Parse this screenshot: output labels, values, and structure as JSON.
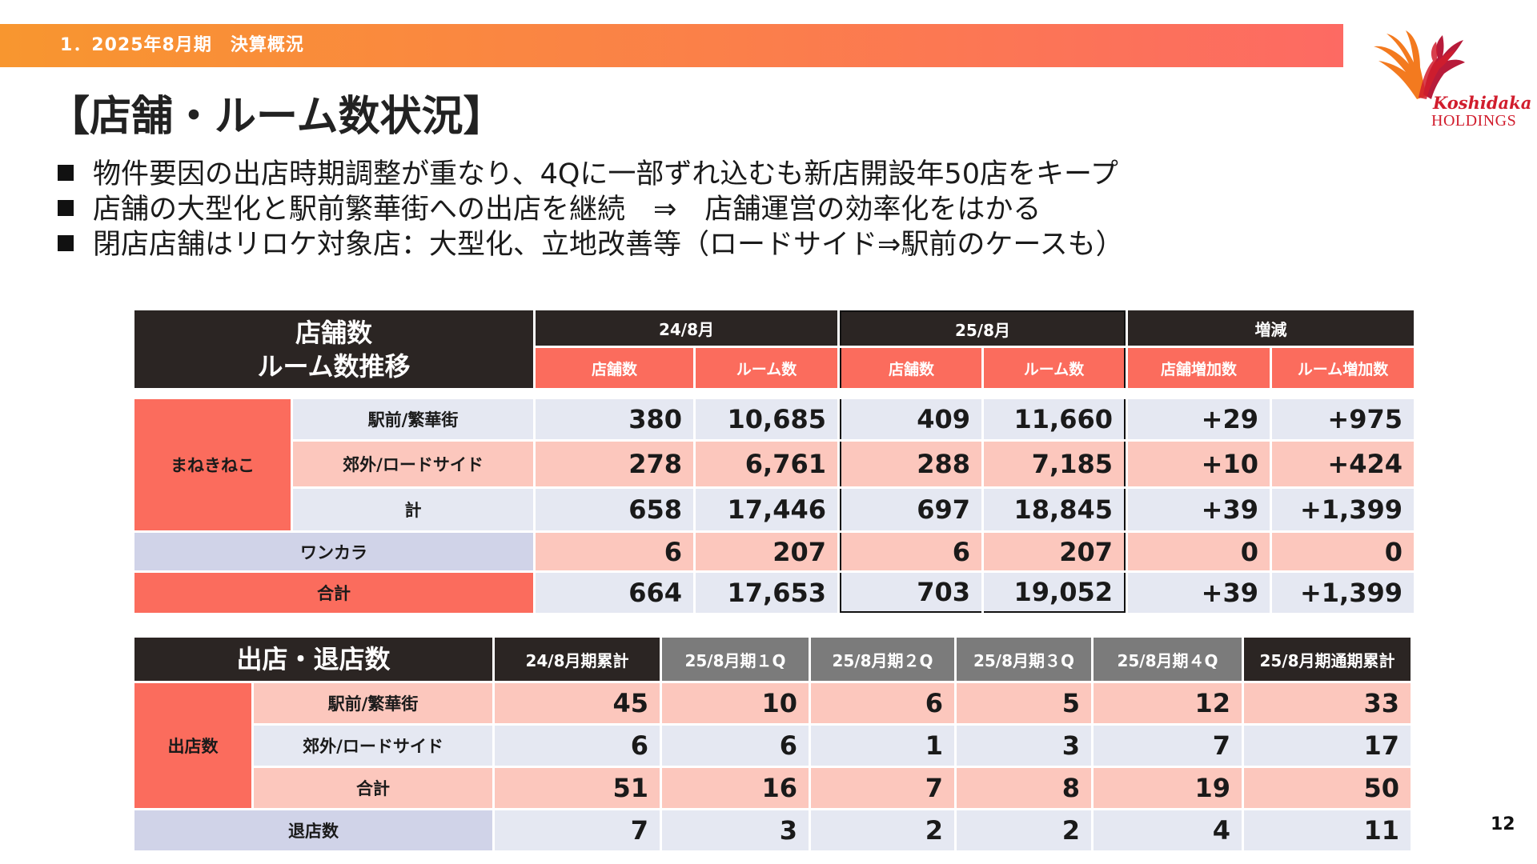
{
  "header": {
    "section_title": "1．2025年8月期　決算概況"
  },
  "logo": {
    "brand": "Koshidaka",
    "sub": "HOLDINGS"
  },
  "page_title": "【店舗・ルーム数状況】",
  "bullets": [
    "物件要因の出店時期調整が重なり、4Qに一部ずれ込むも新店開設年50店をキープ",
    "店舗の大型化と駅前繁華街への出店を継続　⇒　店舗運営の効率化をはかる",
    "閉店店舗はリロケ対象店：大型化、立地改善等（ロードサイド⇒駅前のケースも）"
  ],
  "table1": {
    "title_line1": "店舗数",
    "title_line2": "ルーム数推移",
    "period_a": "24/8月",
    "period_b": "25/8月",
    "period_c": "増減",
    "col_stores": "店舗数",
    "col_rooms": "ルーム数",
    "col_store_inc": "店舗増加数",
    "col_room_inc": "ルーム増加数",
    "group_maneki": "まねきねこ",
    "rows": [
      {
        "label": "駅前/繁華街",
        "v": [
          "380",
          "10,685",
          "409",
          "11,660",
          "+29",
          "+975"
        ]
      },
      {
        "label": "郊外/ロードサイド",
        "v": [
          "278",
          "6,761",
          "288",
          "7,185",
          "+10",
          "+424"
        ]
      },
      {
        "label": "計",
        "v": [
          "658",
          "17,446",
          "697",
          "18,845",
          "+39",
          "+1,399"
        ]
      },
      {
        "label": "ワンカラ",
        "v": [
          "6",
          "207",
          "6",
          "207",
          "0",
          "0"
        ]
      },
      {
        "label": "合計",
        "v": [
          "664",
          "17,653",
          "703",
          "19,052",
          "+39",
          "+1,399"
        ]
      }
    ]
  },
  "table2": {
    "title": "出店・退店数",
    "cols": [
      "24/8月期累計",
      "25/8月期１Q",
      "25/8月期２Q",
      "25/8月期３Q",
      "25/8月期４Q",
      "25/8月期通期累計"
    ],
    "group_open": "出店数",
    "rows": [
      {
        "label": "駅前/繁華街",
        "v": [
          "45",
          "10",
          "6",
          "5",
          "12",
          "33"
        ]
      },
      {
        "label": "郊外/ロードサイド",
        "v": [
          "6",
          "6",
          "1",
          "3",
          "7",
          "17"
        ]
      },
      {
        "label": "合計",
        "v": [
          "51",
          "16",
          "7",
          "8",
          "19",
          "50"
        ]
      },
      {
        "label": "退店数",
        "v": [
          "7",
          "3",
          "2",
          "2",
          "4",
          "11"
        ]
      }
    ]
  },
  "page_number": "12",
  "colors": {
    "accent_orange": "#f8962f",
    "accent_red": "#fb6c5d",
    "header_dark": "#2b2523",
    "logo_red": "#d11d2d"
  }
}
